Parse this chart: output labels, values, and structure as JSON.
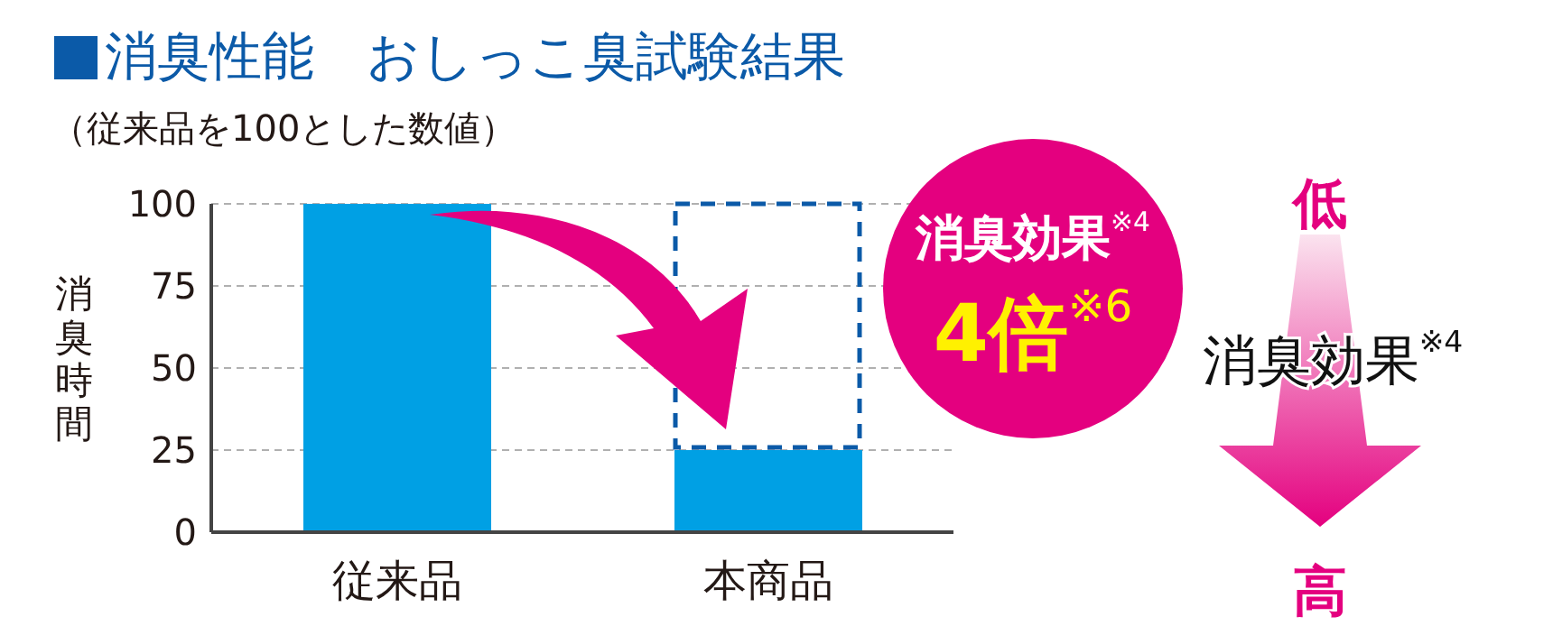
{
  "chart_data": {
    "type": "bar",
    "title": "消臭性能　おしっこ臭試験結果",
    "subtitle": "（従来品を100とした数値）",
    "ylabel": "消臭時間",
    "categories": [
      "従来品",
      "本商品"
    ],
    "values": [
      100,
      25
    ],
    "color": "#00a0e4",
    "ylim": [
      0,
      100
    ],
    "yticks": [
      0,
      25,
      50,
      75,
      100
    ],
    "grid": "y",
    "legend": false,
    "annotations": [
      "消臭効果$^{※4}$",
      "4倍$^{※6}$",
      "低",
      "消臭効果$^{※4}$",
      "高"
    ]
  }
}
